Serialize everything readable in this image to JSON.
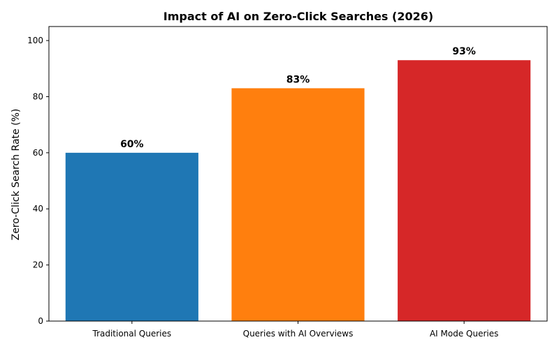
{
  "chart_data": {
    "type": "bar",
    "title": "Impact of AI on Zero-Click Searches (2026)",
    "xlabel": "",
    "ylabel": "Zero-Click Search Rate (%)",
    "ylim": [
      0,
      105
    ],
    "yticks": [
      0,
      20,
      40,
      60,
      80,
      100
    ],
    "categories": [
      "Traditional Queries",
      "Queries with AI Overviews",
      "AI Mode Queries"
    ],
    "values": [
      60,
      83,
      93
    ],
    "data_labels": [
      "60%",
      "83%",
      "93%"
    ],
    "colors": [
      "#1f77b4",
      "#ff7f0e",
      "#d62728"
    ],
    "grid": false,
    "legend": "none"
  }
}
